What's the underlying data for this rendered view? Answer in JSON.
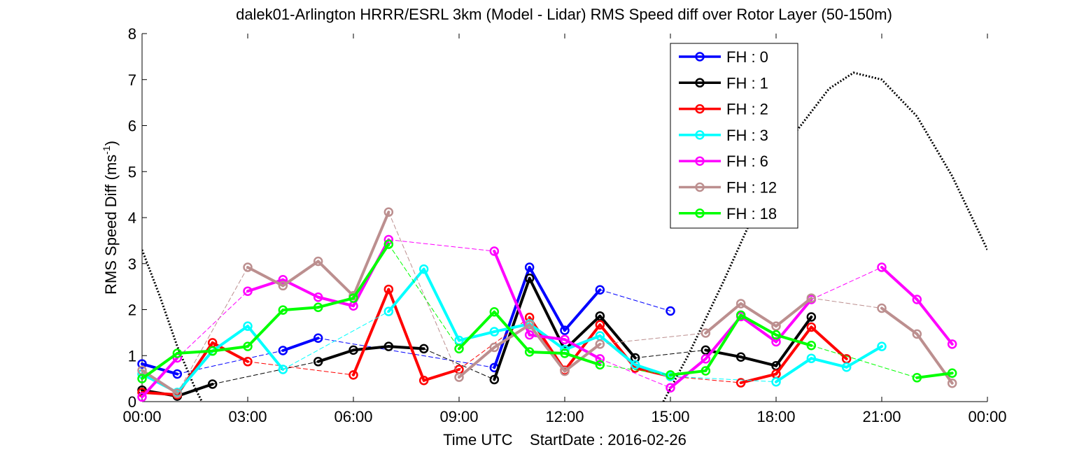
{
  "chart_data": {
    "type": "line",
    "title": "dalek01-Arlington HRRR/ESRL 3km (Model - Lidar) RMS Speed diff over Rotor Layer (50-150m)",
    "xlabel": "Time UTC    StartDate : 2016-02-26",
    "ylabel_main": "RMS Speed Diff (ms",
    "ylabel_sup": "-1",
    "ylabel_close": ")",
    "xlim": [
      0,
      24
    ],
    "ylim": [
      0,
      8
    ],
    "xticks": [
      0,
      3,
      6,
      9,
      12,
      15,
      18,
      21,
      24
    ],
    "xticklabels": [
      "00:00",
      "03:00",
      "06:00",
      "09:00",
      "12:00",
      "15:00",
      "18:00",
      "21:00",
      "00:00"
    ],
    "yticks": [
      0,
      1,
      2,
      3,
      4,
      5,
      6,
      7,
      8
    ],
    "yticklabels": [
      "0",
      "1",
      "2",
      "3",
      "4",
      "5",
      "6",
      "7",
      "8"
    ],
    "legend_position": "top-right",
    "series": [
      {
        "name": "FH : 0",
        "color": "#0000ff",
        "x": [
          0,
          1,
          4,
          5,
          10,
          11,
          12,
          13,
          15
        ],
        "y": [
          0.82,
          0.6,
          1.11,
          1.38,
          0.74,
          2.92,
          1.55,
          2.43,
          1.97
        ]
      },
      {
        "name": "FH : 1",
        "color": "#000000",
        "x": [
          0,
          1,
          2,
          5,
          6,
          7,
          8,
          10,
          11,
          12,
          13,
          14,
          16,
          17,
          18,
          19
        ],
        "y": [
          0.25,
          0.12,
          0.38,
          0.87,
          1.12,
          1.2,
          1.15,
          0.48,
          2.68,
          1.13,
          1.86,
          0.95,
          1.12,
          0.97,
          0.78,
          1.84
        ]
      },
      {
        "name": "FH : 2",
        "color": "#ff0000",
        "x": [
          0,
          1,
          2,
          3,
          6,
          7,
          8,
          9,
          11,
          12,
          13,
          14,
          15,
          17,
          18,
          19,
          20
        ],
        "y": [
          0.2,
          0.15,
          1.28,
          0.87,
          0.58,
          2.44,
          0.46,
          0.7,
          1.83,
          0.68,
          1.67,
          0.73,
          0.55,
          0.41,
          0.6,
          1.62,
          0.93
        ]
      },
      {
        "name": "FH : 3",
        "color": "#00ffff",
        "x": [
          0,
          1,
          2,
          3,
          4,
          7,
          8,
          9,
          10,
          11,
          12,
          13,
          14,
          15,
          18,
          19,
          20,
          21
        ],
        "y": [
          0.6,
          0.2,
          1.1,
          1.64,
          0.7,
          1.96,
          2.88,
          1.33,
          1.52,
          1.69,
          1.13,
          1.43,
          0.8,
          0.55,
          0.43,
          0.94,
          0.75,
          1.2
        ]
      },
      {
        "name": "FH : 6",
        "color": "#ff00ff",
        "x": [
          0,
          1,
          3,
          4,
          5,
          6,
          7,
          10,
          11,
          12,
          13,
          15,
          16,
          17,
          18,
          19,
          21,
          22,
          23
        ],
        "y": [
          0.1,
          0.95,
          2.4,
          2.65,
          2.27,
          2.08,
          3.52,
          3.27,
          1.45,
          1.35,
          0.93,
          0.3,
          0.93,
          1.85,
          1.3,
          2.22,
          2.92,
          2.22,
          1.25
        ]
      },
      {
        "name": "FH : 12",
        "color": "#bc8f8f",
        "x": [
          0,
          1,
          3,
          4,
          5,
          6,
          7,
          9,
          10,
          11,
          12,
          13,
          16,
          17,
          18,
          19,
          21,
          22,
          23
        ],
        "y": [
          0.68,
          0.18,
          2.92,
          2.52,
          3.05,
          2.3,
          4.12,
          0.53,
          1.18,
          1.67,
          0.66,
          1.25,
          1.49,
          2.13,
          1.64,
          2.25,
          2.03,
          1.47,
          0.4
        ]
      },
      {
        "name": "FH : 18",
        "color": "#00ff00",
        "x": [
          0,
          1,
          2,
          3,
          4,
          5,
          6,
          7,
          9,
          10,
          11,
          12,
          13,
          15,
          16,
          17,
          18,
          19,
          22,
          23
        ],
        "y": [
          0.5,
          1.05,
          1.1,
          1.2,
          1.99,
          2.05,
          2.25,
          3.42,
          1.15,
          1.95,
          1.08,
          1.05,
          0.8,
          0.58,
          0.67,
          1.88,
          1.45,
          1.22,
          0.52,
          0.62
        ]
      }
    ],
    "reference_curve": {
      "style": "dotted",
      "color": "#000000",
      "points": [
        [
          0,
          3.3
        ],
        [
          0.5,
          2.3
        ],
        [
          1,
          1.2
        ],
        [
          1.5,
          0.3
        ],
        [
          1.7,
          0
        ],
        [
          14.8,
          0
        ],
        [
          15.5,
          1.0
        ],
        [
          16.5,
          2.6
        ],
        [
          17.5,
          4.3
        ],
        [
          18.5,
          5.8
        ],
        [
          19.5,
          6.8
        ],
        [
          20.2,
          7.15
        ],
        [
          21,
          7.0
        ],
        [
          22,
          6.2
        ],
        [
          23,
          4.9
        ],
        [
          24,
          3.3
        ]
      ]
    }
  }
}
